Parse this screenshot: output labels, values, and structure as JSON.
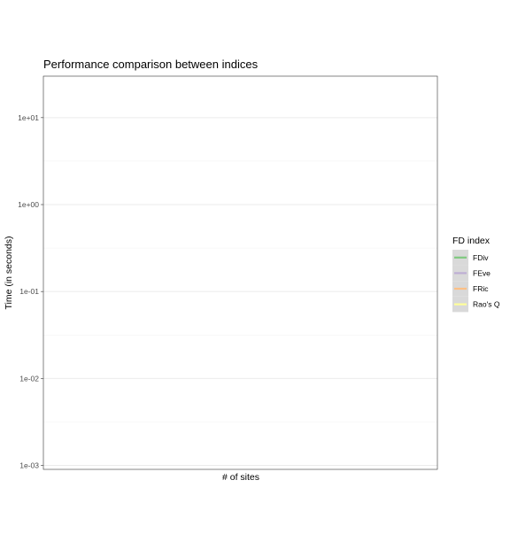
{
  "chart_data": {
    "type": "line",
    "title": "Performance comparison between indices",
    "xlabel": "# of sites",
    "ylabel": "Time (in seconds)",
    "y_scale": "log10",
    "y_ticks": [
      "1e-03",
      "1e-02",
      "1e-01",
      "1e+00",
      "1e+01"
    ],
    "ylim": [
      0.0009,
      30
    ],
    "grid": true,
    "legend": {
      "title": "FD index",
      "position": "right"
    },
    "series": [
      {
        "name": "FDiv",
        "color": "#7fc97f",
        "x": [],
        "y": []
      },
      {
        "name": "FEve",
        "color": "#beaed4",
        "x": [],
        "y": []
      },
      {
        "name": "FRic",
        "color": "#fdc086",
        "x": [],
        "y": []
      },
      {
        "name": "Rao's Q",
        "color": "#ffff99",
        "x": [],
        "y": []
      }
    ]
  }
}
